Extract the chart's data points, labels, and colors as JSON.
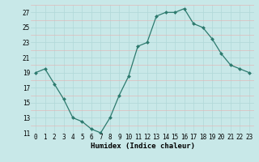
{
  "x": [
    0,
    1,
    2,
    3,
    4,
    5,
    6,
    7,
    8,
    9,
    10,
    11,
    12,
    13,
    14,
    15,
    16,
    17,
    18,
    19,
    20,
    21,
    22,
    23
  ],
  "y": [
    19,
    19.5,
    17.5,
    15.5,
    13,
    12.5,
    11.5,
    11,
    13,
    16,
    18.5,
    22.5,
    23,
    26.5,
    27,
    27,
    27.5,
    25.5,
    25,
    23.5,
    21.5,
    20,
    19.5,
    19
  ],
  "line_color": "#2d7a6e",
  "marker_color": "#2d7a6e",
  "bg_color": "#c8e8e8",
  "grid_color": "#b0d8d8",
  "grid_color_minor": "#d0eaea",
  "xlabel": "Humidex (Indice chaleur)",
  "ylim": [
    11,
    28
  ],
  "yticks": [
    11,
    13,
    15,
    17,
    19,
    21,
    23,
    25,
    27
  ],
  "xticks": [
    0,
    1,
    2,
    3,
    4,
    5,
    6,
    7,
    8,
    9,
    10,
    11,
    12,
    13,
    14,
    15,
    16,
    17,
    18,
    19,
    20,
    21,
    22,
    23
  ],
  "xlabel_fontsize": 6.5,
  "tick_fontsize": 5.5
}
